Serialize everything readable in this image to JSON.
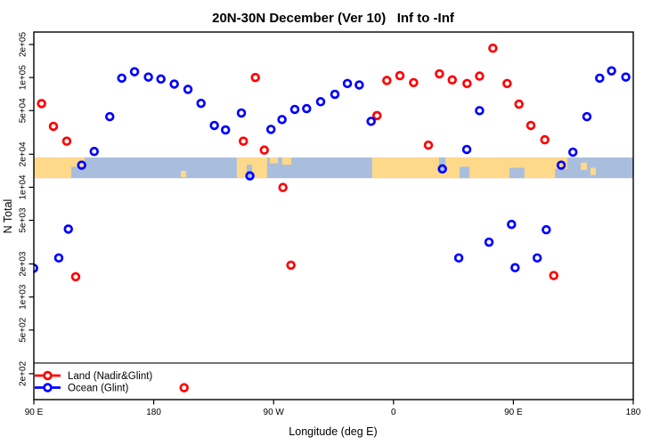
{
  "chart_data": {
    "type": "scatter",
    "title": "20N-30N December (Ver 10)   Inf to -Inf",
    "xlabel": "Longitude (deg E)",
    "ylabel": "N Total",
    "xlim": [
      -270,
      180
    ],
    "y_scale": "log",
    "grid": false,
    "legend_position": "bottom-left",
    "x_ticks": [
      {
        "value": -270,
        "label": "90 E"
      },
      {
        "value": -180,
        "label": "180"
      },
      {
        "value": -90,
        "label": "90 W"
      },
      {
        "value": 0,
        "label": "0"
      },
      {
        "value": 90,
        "label": "90 E"
      },
      {
        "value": 180,
        "label": "180"
      }
    ],
    "y_ticks": [
      {
        "value": 200000,
        "label": "2e+05"
      },
      {
        "value": 100000,
        "label": "1e+05"
      },
      {
        "value": 50000,
        "label": "5e+04"
      },
      {
        "value": 20000,
        "label": "2e+04"
      },
      {
        "value": 10000,
        "label": "1e+04"
      },
      {
        "value": 5000,
        "label": "5e+03"
      },
      {
        "value": 2000,
        "label": "2e+03"
      },
      {
        "value": 1000,
        "label": "1e+03"
      },
      {
        "value": 500,
        "label": "5e+02"
      },
      {
        "value": 200,
        "label": "2e+02"
      }
    ],
    "series": [
      {
        "name": "Land (Nadir&Glint)",
        "color": "#ff0000",
        "marker": "open-circle",
        "points": [
          [
            -264.2,
            57900
          ],
          [
            -255.3,
            35900
          ],
          [
            -245.3,
            26300
          ],
          [
            -238.6,
            1530
          ],
          [
            -157.2,
            149
          ],
          [
            -112.7,
            26300
          ],
          [
            -103.7,
            100000
          ],
          [
            -97.0,
            21800
          ],
          [
            -83.0,
            9950
          ],
          [
            -77.0,
            1950
          ],
          [
            -12.4,
            45000
          ],
          [
            -5.0,
            94000
          ],
          [
            4.8,
            104000
          ],
          [
            15.1,
            89900
          ],
          [
            26.2,
            24200
          ],
          [
            34.5,
            108000
          ],
          [
            44.1,
            95100
          ],
          [
            55.2,
            88200
          ],
          [
            64.6,
            103000
          ],
          [
            74.6,
            185000
          ],
          [
            85.3,
            88200
          ],
          [
            94.2,
            57200
          ],
          [
            103.1,
            36600
          ],
          [
            113.6,
            27100
          ],
          [
            120.3,
            1570
          ]
        ]
      },
      {
        "name": "Ocean (Glint)",
        "color": "#0000ff",
        "marker": "open-circle",
        "points": [
          [
            -270.2,
            1830
          ],
          [
            -251.3,
            2270
          ],
          [
            -244.1,
            4160
          ],
          [
            -234.1,
            15900
          ],
          [
            -224.7,
            21200
          ],
          [
            -213.0,
            44000
          ],
          [
            -204.0,
            98700
          ],
          [
            -194.4,
            113000
          ],
          [
            -184.0,
            101000
          ],
          [
            -174.6,
            96900
          ],
          [
            -164.6,
            87200
          ],
          [
            -154.3,
            78000
          ],
          [
            -144.5,
            58200
          ],
          [
            -134.5,
            36600
          ],
          [
            -126.1,
            33300
          ],
          [
            -114.2,
            47500
          ],
          [
            -107.8,
            12700
          ],
          [
            -92.0,
            33700
          ],
          [
            -83.7,
            41400
          ],
          [
            -74.1,
            51200
          ],
          [
            -65.2,
            52100
          ],
          [
            -54.7,
            60200
          ],
          [
            -44.0,
            70300
          ],
          [
            -34.6,
            88200
          ],
          [
            -25.7,
            85600
          ],
          [
            -16.8,
            39900
          ],
          [
            36.7,
            14700
          ],
          [
            49.0,
            2270
          ],
          [
            55.0,
            22100
          ],
          [
            64.6,
            49900
          ],
          [
            71.7,
            3160
          ],
          [
            88.6,
            4590
          ],
          [
            91.3,
            1850
          ],
          [
            107.9,
            2270
          ],
          [
            114.7,
            4100
          ],
          [
            125.9,
            15900
          ],
          [
            134.7,
            20900
          ],
          [
            145.2,
            44000
          ],
          [
            154.8,
            98700
          ],
          [
            163.7,
            115000
          ],
          [
            174.4,
            101000
          ]
        ]
      }
    ],
    "reference_line": {
      "value": 250,
      "color": "#000000"
    },
    "map_strip": {
      "description": "world coastline band 20N-30N",
      "top_value": 18700,
      "bottom_value": 12100,
      "ocean_color": "#a9bedd",
      "land_color": "#ffd98a",
      "land_segments": [
        {
          "lon0": -270.0,
          "lon1": -241.9,
          "top": 0.0,
          "bottom": 1.0
        },
        {
          "lon0": -241.9,
          "lon1": -231.9,
          "top": 0.0,
          "bottom": 0.45
        },
        {
          "lon0": -159.7,
          "lon1": -155.7,
          "top": 0.65,
          "bottom": 0.95
        },
        {
          "lon0": -117.6,
          "lon1": -94.9,
          "top": 0.0,
          "bottom": 1.0
        },
        {
          "lon0": -92.9,
          "lon1": -86.9,
          "top": 0.0,
          "bottom": 0.28
        },
        {
          "lon0": -83.5,
          "lon1": -76.8,
          "top": 0.0,
          "bottom": 0.35
        },
        {
          "lon0": -16.0,
          "lon1": 121.2,
          "top": 0.0,
          "bottom": 1.0
        },
        {
          "lon0": 121.2,
          "lon1": 130.5,
          "top": 0.0,
          "bottom": 0.55
        },
        {
          "lon0": 140.5,
          "lon1": 145.2,
          "top": 0.25,
          "bottom": 0.6
        },
        {
          "lon0": 147.9,
          "lon1": 151.9,
          "top": 0.5,
          "bottom": 0.85
        }
      ],
      "ocean_inlets": [
        {
          "lon0": -110.2,
          "lon1": -106.2,
          "top": 0.35,
          "bottom": 1.0
        },
        {
          "lon0": 34.2,
          "lon1": 38.9,
          "top": 0.0,
          "bottom": 0.75
        },
        {
          "lon0": 49.6,
          "lon1": 56.9,
          "top": 0.45,
          "bottom": 1.0
        },
        {
          "lon0": 87.0,
          "lon1": 98.3,
          "top": 0.5,
          "bottom": 1.0
        }
      ]
    }
  }
}
